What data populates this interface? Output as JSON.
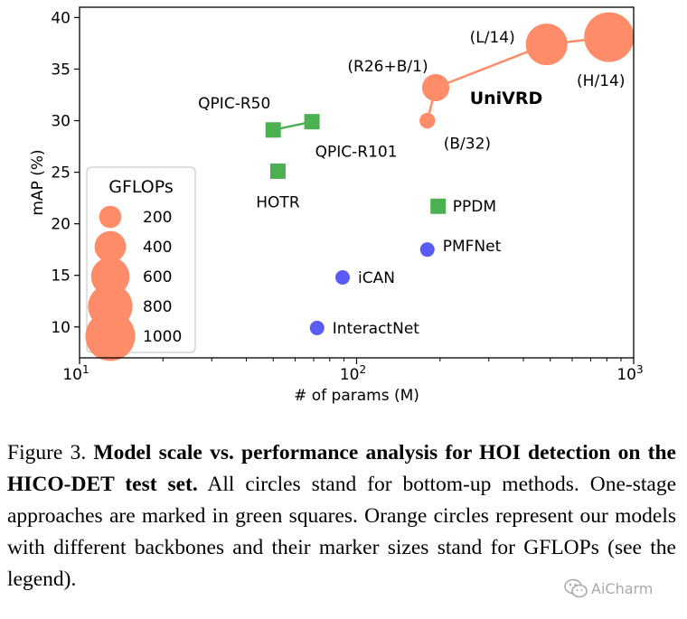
{
  "chart_data": {
    "type": "scatter",
    "xlabel": "# of params (M)",
    "ylabel": "mAP (%)",
    "xscale": "log",
    "xlim": [
      10,
      1000
    ],
    "ylim": [
      7,
      41
    ],
    "xticks": [
      {
        "value": 10,
        "base": "10",
        "exp": "1"
      },
      {
        "value": 100,
        "base": "10",
        "exp": "2"
      },
      {
        "value": 1000,
        "base": "10",
        "exp": "3"
      }
    ],
    "yticks": [
      10,
      15,
      20,
      25,
      30,
      35,
      40
    ],
    "grid": false,
    "series": [
      {
        "kind": "bottom-up",
        "marker": "circle",
        "color": "#5a5af5",
        "points": [
          {
            "label": "InteractNet",
            "x": 72,
            "y": 9.9
          },
          {
            "label": "iCAN",
            "x": 89,
            "y": 14.8
          },
          {
            "label": "PMFNet",
            "x": 180,
            "y": 17.5
          }
        ]
      },
      {
        "kind": "one-stage",
        "marker": "square",
        "color": "#4caf50",
        "points": [
          {
            "label": "QPIC-R50",
            "x": 50,
            "y": 29.1
          },
          {
            "label": "QPIC-R101",
            "x": 69,
            "y": 29.9
          },
          {
            "label": "HOTR",
            "x": 52,
            "y": 25.1
          },
          {
            "label": "PPDM",
            "x": 197,
            "y": 21.7
          }
        ],
        "connect": [
          "QPIC-R50",
          "QPIC-R101"
        ]
      },
      {
        "name": "UniVRD",
        "kind": "ours",
        "marker": "circle",
        "color": "#ff8c69",
        "points": [
          {
            "label": "(B/32)",
            "x": 180,
            "y": 30.0,
            "gflops": 100
          },
          {
            "label": "(R26+B/1)",
            "x": 193,
            "y": 33.2,
            "gflops": 300
          },
          {
            "label": "(L/14)",
            "x": 485,
            "y": 37.4,
            "gflops": 700
          },
          {
            "label": "(H/14)",
            "x": 815,
            "y": 38.1,
            "gflops": 1000
          }
        ]
      }
    ],
    "legend": {
      "title": "GFLOPs",
      "position": "lower-left",
      "entries": [
        {
          "label": "200",
          "gflops": 200
        },
        {
          "label": "400",
          "gflops": 400
        },
        {
          "label": "600",
          "gflops": 600
        },
        {
          "label": "800",
          "gflops": 800
        },
        {
          "label": "1000",
          "gflops": 1000
        }
      ]
    }
  },
  "caption": {
    "prefix": "Figure 3. ",
    "bold": "Model scale vs. performance analysis for HOI detection on the HICO-DET test set.",
    "rest": " All circles stand for bottom-up methods. One-stage approaches are marked in green squares. Orange circles represent our models with different backbones and their marker sizes stand for GFLOPs (see the legend)."
  },
  "watermark": {
    "icon": "wechat-icon",
    "text": "AiCharm"
  }
}
